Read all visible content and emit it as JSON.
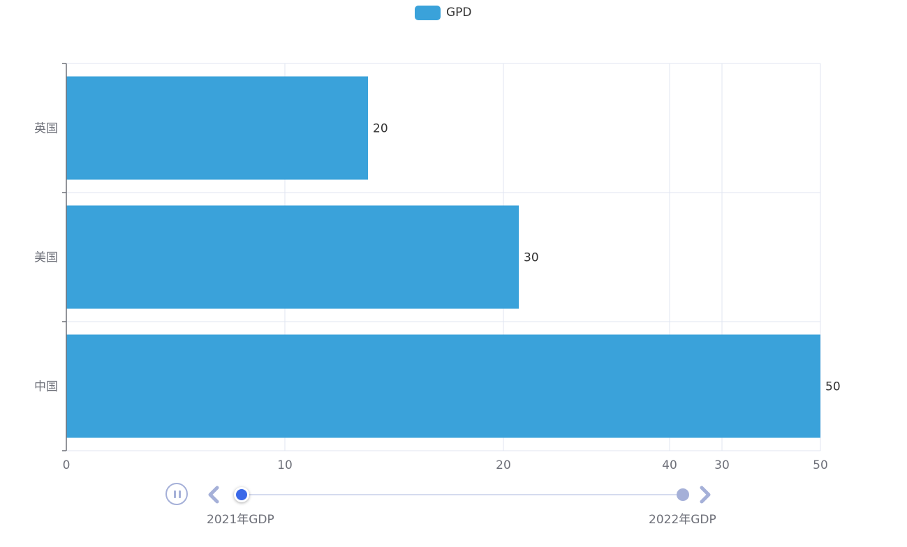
{
  "legend": {
    "label": "GPD",
    "color": "#3aa2da"
  },
  "chart_data": {
    "type": "bar",
    "orientation": "horizontal",
    "categories": [
      "英国",
      "美国",
      "中国"
    ],
    "series": [
      {
        "name": "GPD",
        "values": [
          20,
          30,
          50
        ]
      }
    ],
    "x_ticks": [
      "0",
      "10",
      "20",
      "40",
      "30",
      "50"
    ],
    "grid": true,
    "legend_position": "top-center",
    "bar_color": "#3aa2da"
  },
  "timeline": {
    "labels": [
      "2021年GDP",
      "2022年GDP"
    ],
    "current_index": 0,
    "state": "playing",
    "accent": "#3a68e8",
    "muted": "#a5b0d8"
  }
}
